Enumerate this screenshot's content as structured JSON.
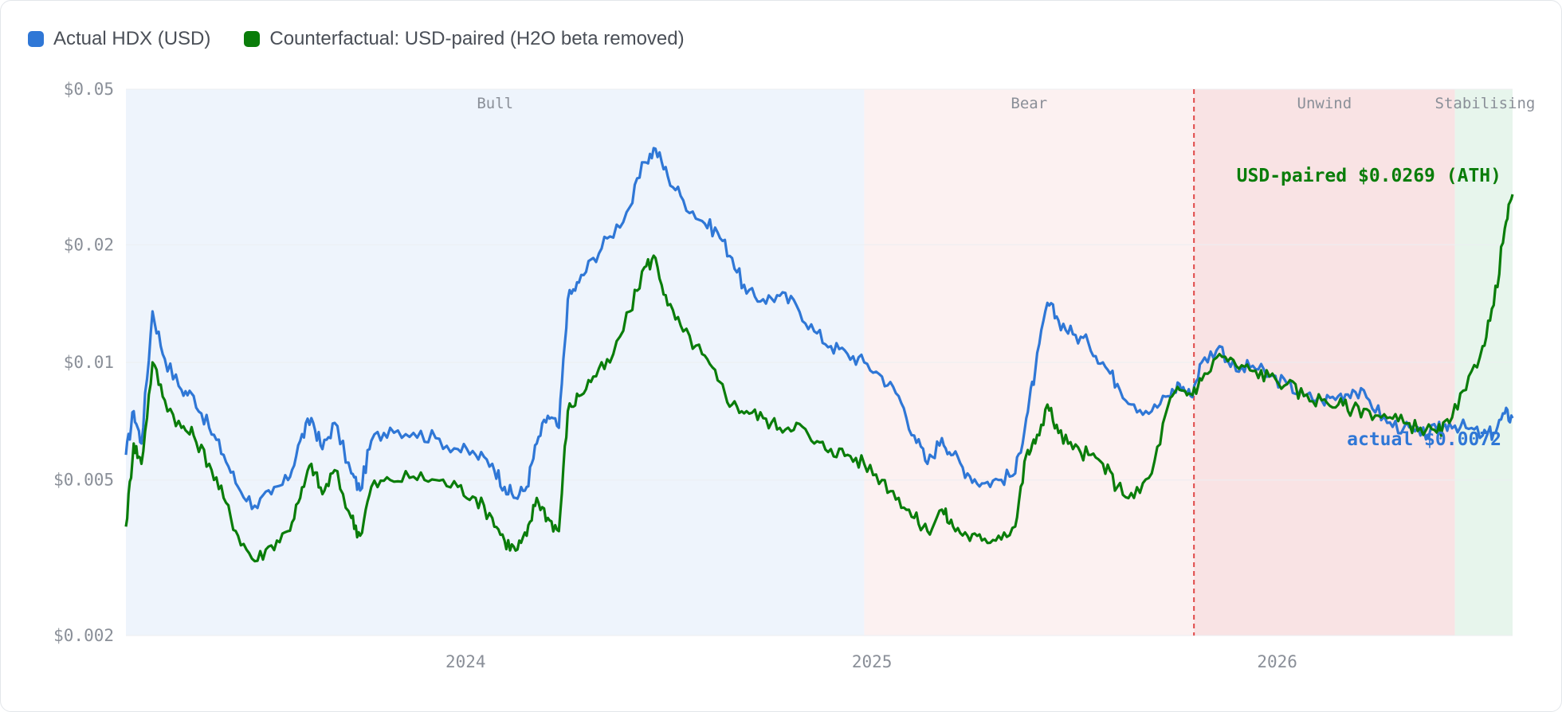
{
  "legend": {
    "items": [
      {
        "label": "Actual HDX (USD)",
        "color": "#2f77d6"
      },
      {
        "label": "Counterfactual: USD-paired (H2O beta removed)",
        "color": "#0a7d0a"
      }
    ]
  },
  "chart_data": {
    "type": "line",
    "y_scale": "log",
    "ylim": [
      0.002,
      0.05
    ],
    "xlim": [
      "2023-03-01",
      "2026-08-01"
    ],
    "yticks": [
      {
        "value": 0.05,
        "label": "$0.05"
      },
      {
        "value": 0.02,
        "label": "$0.02"
      },
      {
        "value": 0.01,
        "label": "$0.01"
      },
      {
        "value": 0.005,
        "label": "$0.005"
      },
      {
        "value": 0.002,
        "label": "$0.002"
      }
    ],
    "xticks": [
      {
        "date": "2024-01-01",
        "label": "2024"
      },
      {
        "date": "2025-01-01",
        "label": "2025"
      },
      {
        "date": "2026-01-01",
        "label": "2026"
      }
    ],
    "grid": true,
    "legend_position": "top-left",
    "regimes": [
      {
        "label": "Bull",
        "start": "2023-03-01",
        "end": "2024-12-25",
        "color": "#eef4fc"
      },
      {
        "label": "Bear",
        "start": "2024-12-25",
        "end": "2025-10-18",
        "color": "#fcf1f1"
      },
      {
        "label": "Unwind",
        "start": "2025-10-18",
        "end": "2026-06-10",
        "color": "#f9e3e4"
      },
      {
        "label": "Stabilising",
        "start": "2026-06-10",
        "end": "2026-08-01",
        "color": "#e7f5ec"
      }
    ],
    "event_line": {
      "date": "2025-10-18",
      "color": "#e04848"
    },
    "series": [
      {
        "name": "Actual HDX (USD)",
        "color": "#2f77d6",
        "end_label": "actual $0.0072",
        "points": [
          [
            "2023-03-01",
            0.0058
          ],
          [
            "2023-03-08",
            0.0075
          ],
          [
            "2023-03-15",
            0.0062
          ],
          [
            "2023-03-25",
            0.0135
          ],
          [
            "2023-04-05",
            0.0102
          ],
          [
            "2023-04-20",
            0.0085
          ],
          [
            "2023-05-01",
            0.0082
          ],
          [
            "2023-05-15",
            0.0068
          ],
          [
            "2023-05-28",
            0.0058
          ],
          [
            "2023-06-10",
            0.0048
          ],
          [
            "2023-06-25",
            0.0043
          ],
          [
            "2023-07-10",
            0.0046
          ],
          [
            "2023-07-25",
            0.005
          ],
          [
            "2023-08-05",
            0.0063
          ],
          [
            "2023-08-15",
            0.0072
          ],
          [
            "2023-08-25",
            0.006
          ],
          [
            "2023-09-05",
            0.007
          ],
          [
            "2023-09-20",
            0.0052
          ],
          [
            "2023-09-28",
            0.0047
          ],
          [
            "2023-10-08",
            0.0063
          ],
          [
            "2023-10-25",
            0.0068
          ],
          [
            "2023-11-15",
            0.0066
          ],
          [
            "2023-12-05",
            0.0064
          ],
          [
            "2023-12-25",
            0.006
          ],
          [
            "2024-01-10",
            0.0058
          ],
          [
            "2024-01-25",
            0.0055
          ],
          [
            "2024-02-05",
            0.0048
          ],
          [
            "2024-02-15",
            0.0045
          ],
          [
            "2024-02-25",
            0.0048
          ],
          [
            "2024-03-05",
            0.0062
          ],
          [
            "2024-03-15",
            0.0073
          ],
          [
            "2024-03-25",
            0.0068
          ],
          [
            "2024-04-02",
            0.0145
          ],
          [
            "2024-04-12",
            0.016
          ],
          [
            "2024-04-25",
            0.0185
          ],
          [
            "2024-05-10",
            0.021
          ],
          [
            "2024-05-28",
            0.025
          ],
          [
            "2024-06-10",
            0.0325
          ],
          [
            "2024-06-20",
            0.0352
          ],
          [
            "2024-07-01",
            0.03
          ],
          [
            "2024-07-15",
            0.026
          ],
          [
            "2024-08-01",
            0.023
          ],
          [
            "2024-08-15",
            0.0215
          ],
          [
            "2024-08-28",
            0.0185
          ],
          [
            "2024-09-10",
            0.015
          ],
          [
            "2024-09-25",
            0.0145
          ],
          [
            "2024-10-10",
            0.0148
          ],
          [
            "2024-10-25",
            0.014
          ],
          [
            "2024-11-10",
            0.012
          ],
          [
            "2024-11-25",
            0.011
          ],
          [
            "2024-12-10",
            0.0105
          ],
          [
            "2024-12-25",
            0.01
          ],
          [
            "2025-01-10",
            0.0092
          ],
          [
            "2025-01-25",
            0.0082
          ],
          [
            "2025-02-08",
            0.0065
          ],
          [
            "2025-02-20",
            0.0055
          ],
          [
            "2025-03-05",
            0.0064
          ],
          [
            "2025-03-15",
            0.0058
          ],
          [
            "2025-03-28",
            0.0052
          ],
          [
            "2025-04-10",
            0.0049
          ],
          [
            "2025-04-25",
            0.005
          ],
          [
            "2025-05-10",
            0.0052
          ],
          [
            "2025-05-20",
            0.0072
          ],
          [
            "2025-05-28",
            0.0095
          ],
          [
            "2025-06-08",
            0.0142
          ],
          [
            "2025-06-18",
            0.0128
          ],
          [
            "2025-07-01",
            0.0118
          ],
          [
            "2025-07-15",
            0.0112
          ],
          [
            "2025-07-28",
            0.01
          ],
          [
            "2025-08-10",
            0.0088
          ],
          [
            "2025-08-25",
            0.0078
          ],
          [
            "2025-09-10",
            0.0075
          ],
          [
            "2025-09-25",
            0.0082
          ],
          [
            "2025-10-05",
            0.0088
          ],
          [
            "2025-10-15",
            0.0082
          ],
          [
            "2025-10-25",
            0.01
          ],
          [
            "2025-11-10",
            0.011
          ],
          [
            "2025-11-25",
            0.0095
          ],
          [
            "2025-12-10",
            0.0098
          ],
          [
            "2025-12-25",
            0.0092
          ],
          [
            "2026-01-10",
            0.0088
          ],
          [
            "2026-01-25",
            0.0082
          ],
          [
            "2026-02-10",
            0.008
          ],
          [
            "2026-02-25",
            0.0082
          ],
          [
            "2026-03-10",
            0.0085
          ],
          [
            "2026-03-25",
            0.008
          ],
          [
            "2026-04-10",
            0.007
          ],
          [
            "2026-04-25",
            0.0068
          ],
          [
            "2026-05-10",
            0.0065
          ],
          [
            "2026-05-25",
            0.0067
          ],
          [
            "2026-06-05",
            0.007
          ],
          [
            "2026-06-20",
            0.0068
          ],
          [
            "2026-07-05",
            0.0065
          ],
          [
            "2026-07-15",
            0.0066
          ],
          [
            "2026-07-25",
            0.0074
          ],
          [
            "2026-08-01",
            0.0072
          ]
        ]
      },
      {
        "name": "Counterfactual: USD-paired (H2O beta removed)",
        "color": "#0a7d0a",
        "end_label": "USD-paired $0.0269 (ATH)",
        "points": [
          [
            "2023-03-01",
            0.0038
          ],
          [
            "2023-03-08",
            0.0062
          ],
          [
            "2023-03-15",
            0.0055
          ],
          [
            "2023-03-25",
            0.01
          ],
          [
            "2023-04-05",
            0.008
          ],
          [
            "2023-04-20",
            0.0068
          ],
          [
            "2023-05-01",
            0.0065
          ],
          [
            "2023-05-15",
            0.0055
          ],
          [
            "2023-05-28",
            0.0045
          ],
          [
            "2023-06-10",
            0.0036
          ],
          [
            "2023-06-25",
            0.0031
          ],
          [
            "2023-07-10",
            0.0034
          ],
          [
            "2023-07-25",
            0.0037
          ],
          [
            "2023-08-05",
            0.0045
          ],
          [
            "2023-08-15",
            0.0055
          ],
          [
            "2023-08-25",
            0.0046
          ],
          [
            "2023-09-05",
            0.0053
          ],
          [
            "2023-09-20",
            0.004
          ],
          [
            "2023-09-28",
            0.0036
          ],
          [
            "2023-10-08",
            0.0048
          ],
          [
            "2023-10-25",
            0.005
          ],
          [
            "2023-11-15",
            0.0051
          ],
          [
            "2023-12-05",
            0.005
          ],
          [
            "2023-12-25",
            0.0048
          ],
          [
            "2024-01-10",
            0.0045
          ],
          [
            "2024-01-25",
            0.004
          ],
          [
            "2024-02-05",
            0.0035
          ],
          [
            "2024-02-15",
            0.0033
          ],
          [
            "2024-02-25",
            0.0036
          ],
          [
            "2024-03-05",
            0.0045
          ],
          [
            "2024-03-15",
            0.004
          ],
          [
            "2024-03-25",
            0.0037
          ],
          [
            "2024-04-02",
            0.0075
          ],
          [
            "2024-04-12",
            0.0082
          ],
          [
            "2024-04-25",
            0.0092
          ],
          [
            "2024-05-10",
            0.01
          ],
          [
            "2024-05-28",
            0.0135
          ],
          [
            "2024-06-10",
            0.0175
          ],
          [
            "2024-06-20",
            0.0185
          ],
          [
            "2024-07-01",
            0.014
          ],
          [
            "2024-07-15",
            0.012
          ],
          [
            "2024-08-01",
            0.0105
          ],
          [
            "2024-08-15",
            0.009
          ],
          [
            "2024-08-28",
            0.0078
          ],
          [
            "2024-09-10",
            0.0075
          ],
          [
            "2024-09-25",
            0.0072
          ],
          [
            "2024-10-10",
            0.0068
          ],
          [
            "2024-10-25",
            0.007
          ],
          [
            "2024-11-10",
            0.0062
          ],
          [
            "2024-11-25",
            0.006
          ],
          [
            "2024-12-10",
            0.0058
          ],
          [
            "2024-12-25",
            0.0055
          ],
          [
            "2025-01-10",
            0.005
          ],
          [
            "2025-01-25",
            0.0045
          ],
          [
            "2025-02-08",
            0.004
          ],
          [
            "2025-02-20",
            0.0037
          ],
          [
            "2025-03-05",
            0.0042
          ],
          [
            "2025-03-15",
            0.0038
          ],
          [
            "2025-03-28",
            0.0036
          ],
          [
            "2025-04-10",
            0.0035
          ],
          [
            "2025-04-25",
            0.0036
          ],
          [
            "2025-05-10",
            0.0038
          ],
          [
            "2025-05-20",
            0.0058
          ],
          [
            "2025-05-28",
            0.0062
          ],
          [
            "2025-06-08",
            0.0078
          ],
          [
            "2025-06-18",
            0.0066
          ],
          [
            "2025-07-01",
            0.006
          ],
          [
            "2025-07-15",
            0.0058
          ],
          [
            "2025-07-28",
            0.0055
          ],
          [
            "2025-08-10",
            0.0048
          ],
          [
            "2025-08-25",
            0.0045
          ],
          [
            "2025-09-10",
            0.0052
          ],
          [
            "2025-09-25",
            0.0078
          ],
          [
            "2025-10-05",
            0.0085
          ],
          [
            "2025-10-15",
            0.0083
          ],
          [
            "2025-10-25",
            0.009
          ],
          [
            "2025-11-10",
            0.0105
          ],
          [
            "2025-11-25",
            0.0098
          ],
          [
            "2025-12-10",
            0.0095
          ],
          [
            "2025-12-25",
            0.0092
          ],
          [
            "2026-01-10",
            0.0088
          ],
          [
            "2026-01-25",
            0.0082
          ],
          [
            "2026-02-10",
            0.008
          ],
          [
            "2026-02-25",
            0.0078
          ],
          [
            "2026-03-10",
            0.0076
          ],
          [
            "2026-03-25",
            0.0075
          ],
          [
            "2026-04-10",
            0.0072
          ],
          [
            "2026-04-25",
            0.007
          ],
          [
            "2026-05-10",
            0.0068
          ],
          [
            "2026-05-25",
            0.0066
          ],
          [
            "2026-06-05",
            0.007
          ],
          [
            "2026-06-20",
            0.0085
          ],
          [
            "2026-07-05",
            0.011
          ],
          [
            "2026-07-15",
            0.014
          ],
          [
            "2026-07-25",
            0.022
          ],
          [
            "2026-08-01",
            0.0269
          ]
        ]
      }
    ]
  }
}
